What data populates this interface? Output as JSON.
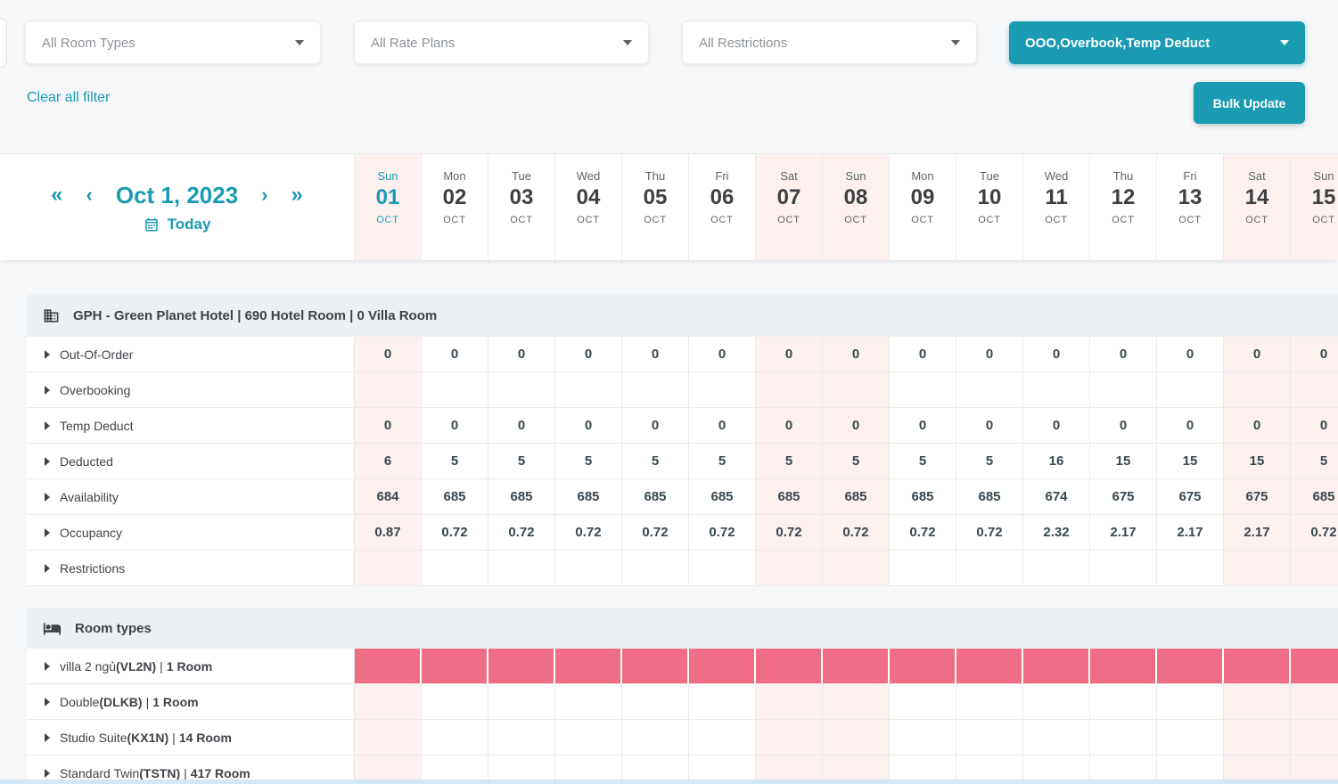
{
  "filters": {
    "room_types_value": "All Room Types",
    "rate_plans_value": "All Rate Plans",
    "restrictions_value": "All Restrictions",
    "display_options_value": "OOO,Overbook,Temp Deduct",
    "clear_label": "Clear all filter",
    "bulk_update_label": "Bulk Update"
  },
  "date_nav": {
    "current_date": "Oct 1, 2023",
    "today_label": "Today",
    "first_arrow": "«",
    "prev_arrow": "‹",
    "next_arrow": "›",
    "last_arrow": "»"
  },
  "calendar": {
    "days": [
      {
        "dow": "Sun",
        "num": "01",
        "mon": "OCT",
        "weekend": true,
        "today": true
      },
      {
        "dow": "Mon",
        "num": "02",
        "mon": "OCT",
        "weekend": false,
        "today": false
      },
      {
        "dow": "Tue",
        "num": "03",
        "mon": "OCT",
        "weekend": false,
        "today": false
      },
      {
        "dow": "Wed",
        "num": "04",
        "mon": "OCT",
        "weekend": false,
        "today": false
      },
      {
        "dow": "Thu",
        "num": "05",
        "mon": "OCT",
        "weekend": false,
        "today": false
      },
      {
        "dow": "Fri",
        "num": "06",
        "mon": "OCT",
        "weekend": false,
        "today": false
      },
      {
        "dow": "Sat",
        "num": "07",
        "mon": "OCT",
        "weekend": true,
        "today": false
      },
      {
        "dow": "Sun",
        "num": "08",
        "mon": "OCT",
        "weekend": true,
        "today": false
      },
      {
        "dow": "Mon",
        "num": "09",
        "mon": "OCT",
        "weekend": false,
        "today": false
      },
      {
        "dow": "Tue",
        "num": "10",
        "mon": "OCT",
        "weekend": false,
        "today": false
      },
      {
        "dow": "Wed",
        "num": "11",
        "mon": "OCT",
        "weekend": false,
        "today": false
      },
      {
        "dow": "Thu",
        "num": "12",
        "mon": "OCT",
        "weekend": false,
        "today": false
      },
      {
        "dow": "Fri",
        "num": "13",
        "mon": "OCT",
        "weekend": false,
        "today": false
      },
      {
        "dow": "Sat",
        "num": "14",
        "mon": "OCT",
        "weekend": true,
        "today": false
      },
      {
        "dow": "Sun",
        "num": "15",
        "mon": "OCT",
        "weekend": true,
        "today": false
      }
    ]
  },
  "hotel_section": {
    "title": "GPH - Green Planet Hotel | 690 Hotel Room | 0 Villa Room",
    "rows": [
      {
        "label": "Out-Of-Order",
        "values": [
          "0",
          "0",
          "0",
          "0",
          "0",
          "0",
          "0",
          "0",
          "0",
          "0",
          "0",
          "0",
          "0",
          "0",
          "0"
        ]
      },
      {
        "label": "Overbooking",
        "values": []
      },
      {
        "label": "Temp Deduct",
        "values": [
          "0",
          "0",
          "0",
          "0",
          "0",
          "0",
          "0",
          "0",
          "0",
          "0",
          "0",
          "0",
          "0",
          "0",
          "0"
        ]
      },
      {
        "label": "Deducted",
        "values": [
          "6",
          "5",
          "5",
          "5",
          "5",
          "5",
          "5",
          "5",
          "5",
          "5",
          "16",
          "15",
          "15",
          "15",
          "5"
        ]
      },
      {
        "label": "Availability",
        "values": [
          "684",
          "685",
          "685",
          "685",
          "685",
          "685",
          "685",
          "685",
          "685",
          "685",
          "674",
          "675",
          "675",
          "675",
          "685"
        ]
      },
      {
        "label": "Occupancy",
        "values": [
          "0.87",
          "0.72",
          "0.72",
          "0.72",
          "0.72",
          "0.72",
          "0.72",
          "0.72",
          "0.72",
          "0.72",
          "2.32",
          "2.17",
          "2.17",
          "2.17",
          "0.72"
        ]
      },
      {
        "label": "Restrictions",
        "values": []
      }
    ]
  },
  "room_types_section": {
    "title": "Room types",
    "sep": "|",
    "rows": [
      {
        "name": "villa 2 ngủ",
        "code": "(VL2N)",
        "count": "1 Room",
        "full": true
      },
      {
        "name": "Double",
        "code": "(DLKB)",
        "count": "1 Room",
        "full": false
      },
      {
        "name": "Studio Suite",
        "code": "(KX1N)",
        "count": "14 Room",
        "full": false
      },
      {
        "name": "Standard Twin",
        "code": "(TSTN)",
        "count": "417 Room",
        "full": false
      }
    ]
  },
  "colors": {
    "accent_teal": "#1a9bb2",
    "occupied_pink": "#ef6e85",
    "weekend_bg": "#fcf1ef",
    "header_band": "#edf0f2"
  }
}
